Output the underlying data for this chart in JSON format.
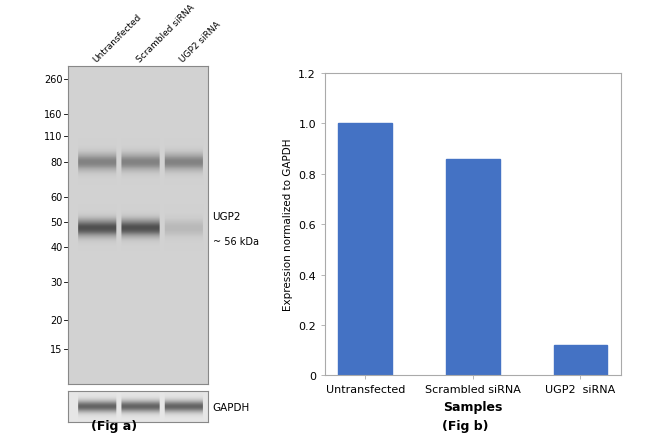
{
  "fig_width": 6.5,
  "fig_height": 4.35,
  "dpi": 100,
  "bar_categories": [
    "Untransfected",
    "Scrambled siRNA",
    "UGP2  siRNA"
  ],
  "bar_values": [
    1.0,
    0.86,
    0.12
  ],
  "bar_color": "#4472C4",
  "ylabel": "Expression normalized to GAPDH",
  "xlabel": "Samples",
  "ylim": [
    0,
    1.2
  ],
  "yticks": [
    0,
    0.2,
    0.4,
    0.6,
    0.8,
    1.0,
    1.2
  ],
  "ytick_labels": [
    "0",
    "0.2",
    "0.4",
    "0.6",
    "0.8",
    "1.0",
    "1.2"
  ],
  "fig_a_label": "(Fig a)",
  "fig_b_label": "(Fig b)",
  "wb_marker_labels": [
    "260",
    "160",
    "110",
    "80",
    "60",
    "50",
    "40",
    "30",
    "20",
    "15"
  ],
  "wb_annotation_ugp2": "UGP2",
  "wb_annotation_56kda": "~ 56 kDa",
  "wb_annotation_gapdh": "GAPDH",
  "wb_lane_labels": [
    "Untransfected",
    "Scrambled siRNA",
    "UGP2 siRNA"
  ],
  "background_color": "#ffffff",
  "gel_bg": 210,
  "gel_band_dark": 80,
  "gel_band_mid": 130,
  "gel_band_light": 185,
  "gapdh_bg": 230
}
